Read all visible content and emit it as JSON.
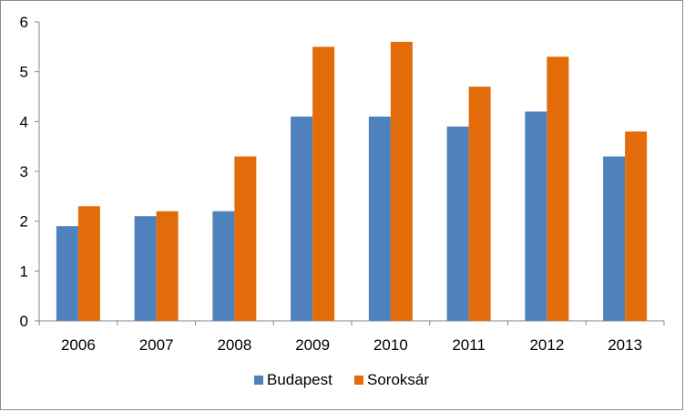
{
  "chart_data": {
    "type": "bar",
    "title": "",
    "xlabel": "",
    "ylabel": "",
    "categories": [
      "2006",
      "2007",
      "2008",
      "2009",
      "2010",
      "2011",
      "2012",
      "2013"
    ],
    "series": [
      {
        "name": "Budapest",
        "color": "#4f81bd",
        "values": [
          1.9,
          2.1,
          2.2,
          4.1,
          4.1,
          3.9,
          4.2,
          3.3
        ]
      },
      {
        "name": "Soroksár",
        "color": "#e36c0a",
        "values": [
          2.3,
          2.2,
          3.3,
          5.5,
          5.6,
          4.7,
          5.3,
          3.8
        ]
      }
    ],
    "ylim": [
      0,
      6
    ],
    "yticks": [
      "0",
      "1",
      "2",
      "3",
      "4",
      "5",
      "6"
    ],
    "grid": false,
    "legend_position": "bottom"
  }
}
